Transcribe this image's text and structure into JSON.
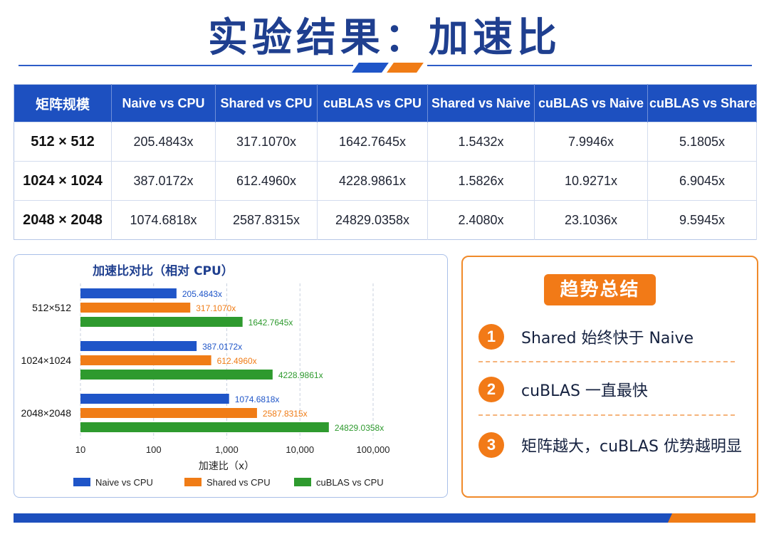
{
  "title": "实验结果：加速比",
  "colors": {
    "blue": "#1f55c8",
    "orange": "#f07c16",
    "green": "#2e9a2e"
  },
  "table": {
    "headers": [
      "矩阵规模",
      "Naive vs CPU",
      "Shared vs CPU",
      "cuBLAS vs CPU",
      "Shared vs Naive",
      "cuBLAS vs Naive",
      "cuBLAS vs Shared"
    ],
    "rows": [
      [
        "512 × 512",
        "205.4843x",
        "317.1070x",
        "1642.7645x",
        "1.5432x",
        "7.9946x",
        "5.1805x"
      ],
      [
        "1024 × 1024",
        "387.0172x",
        "612.4960x",
        "4228.9861x",
        "1.5826x",
        "10.9271x",
        "6.9045x"
      ],
      [
        "2048 × 2048",
        "1074.6818x",
        "2587.8315x",
        "24829.0358x",
        "2.4080x",
        "23.1036x",
        "9.5945x"
      ]
    ]
  },
  "chart_data": {
    "type": "bar",
    "orientation": "horizontal",
    "title": "加速比对比（相对 CPU）",
    "xlabel": "加速比（x）",
    "xscale": "log",
    "xlim": [
      10,
      100000
    ],
    "xticks": [
      10,
      100,
      1000,
      10000,
      100000
    ],
    "xtick_labels": [
      "10",
      "100",
      "1,000",
      "10,000",
      "100,000"
    ],
    "grid": "vertical dashed",
    "legend": "bottom",
    "categories": [
      "512×512",
      "1024×1024",
      "2048×2048"
    ],
    "series": [
      {
        "name": "Naive vs CPU",
        "color": "#1f55c8",
        "values": [
          205.4843,
          387.0172,
          1074.6818
        ],
        "labels": [
          "205.4843x",
          "387.0172x",
          "1074.6818x"
        ]
      },
      {
        "name": "Shared vs CPU",
        "color": "#f07c16",
        "values": [
          317.107,
          612.496,
          2587.8315
        ],
        "labels": [
          "317.1070x",
          "612.4960x",
          "2587.8315x"
        ]
      },
      {
        "name": "cuBLAS vs CPU",
        "color": "#2e9a2e",
        "values": [
          1642.7645,
          4228.9861,
          24829.0358
        ],
        "labels": [
          "1642.7645x",
          "4228.9861x",
          "24829.0358x"
        ]
      }
    ]
  },
  "summary": {
    "title": "趋势总结",
    "items": [
      {
        "num": "1",
        "text": "Shared 始终快于 Naive"
      },
      {
        "num": "2",
        "text": "cuBLAS 一直最快"
      },
      {
        "num": "3",
        "text": "矩阵越大，cuBLAS 优势越明显"
      }
    ]
  }
}
